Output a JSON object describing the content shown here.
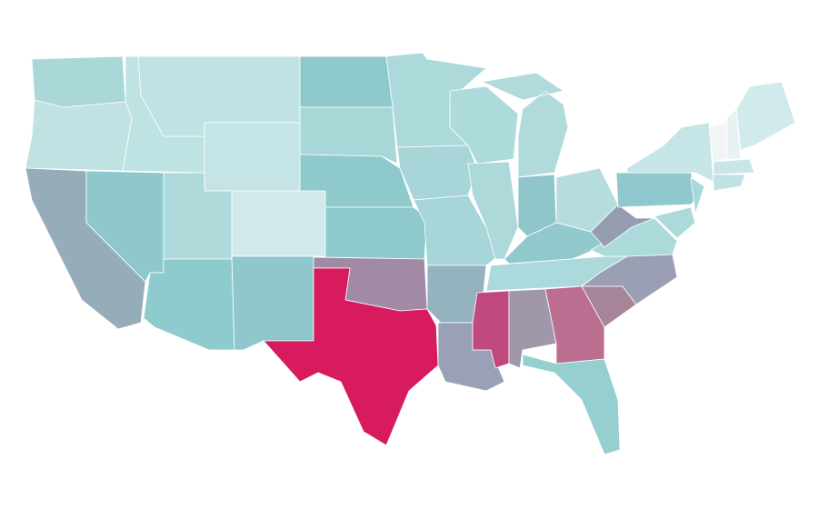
{
  "map": {
    "regions": [
      {
        "color": "#aad8d8"
      },
      {
        "color": "#c0e2e3"
      },
      {
        "color": "#97acb9"
      },
      {
        "color": "#8fc8cc"
      },
      {
        "color": "#bfe2e3"
      },
      {
        "color": "#c0e2e4"
      },
      {
        "color": "#c4e4e5"
      },
      {
        "color": "#afdadb"
      },
      {
        "color": "#d0eaeb"
      },
      {
        "color": "#8ecbcd"
      },
      {
        "color": "#8ec8cc"
      },
      {
        "color": "#8ec9cb"
      },
      {
        "color": "#a8d7d8"
      },
      {
        "color": "#8ec9cc"
      },
      {
        "color": "#8ec9cc"
      },
      {
        "color": "#a18aa6"
      },
      {
        "color": "#d81a5f"
      },
      {
        "color": "#acd9da"
      },
      {
        "color": "#a8d6d8"
      },
      {
        "color": "#a6d6d8"
      },
      {
        "color": "#95b3bf"
      },
      {
        "color": "#9aa1b7"
      },
      {
        "color": "#addadb"
      },
      {
        "color": "#aed9da"
      },
      {
        "color": "#b0dadc"
      },
      {
        "color": "#8fc6cc"
      },
      {
        "color": "#b5dddf"
      },
      {
        "color": "#92c9cd"
      },
      {
        "color": "#acd9db"
      },
      {
        "color": "#c04a7f"
      },
      {
        "color": "#a097aa"
      },
      {
        "color": "#ba6e90"
      },
      {
        "color": "#95cfcf"
      },
      {
        "color": "#a68599"
      },
      {
        "color": "#9a9fb3"
      },
      {
        "color": "#acd9da"
      },
      {
        "color": "#949eb0"
      },
      {
        "color": "#8fc8cd"
      },
      {
        "color": "#c5e5e6"
      },
      {
        "color": "#a9d8da"
      },
      {
        "color": "#acd9da"
      },
      {
        "color": "#f2f5f6"
      },
      {
        "color": "#e8f2f3"
      },
      {
        "color": "#d1ebec"
      },
      {
        "color": "#c8e6e7"
      },
      {
        "color": "#bfe3e4"
      }
    ]
  }
}
